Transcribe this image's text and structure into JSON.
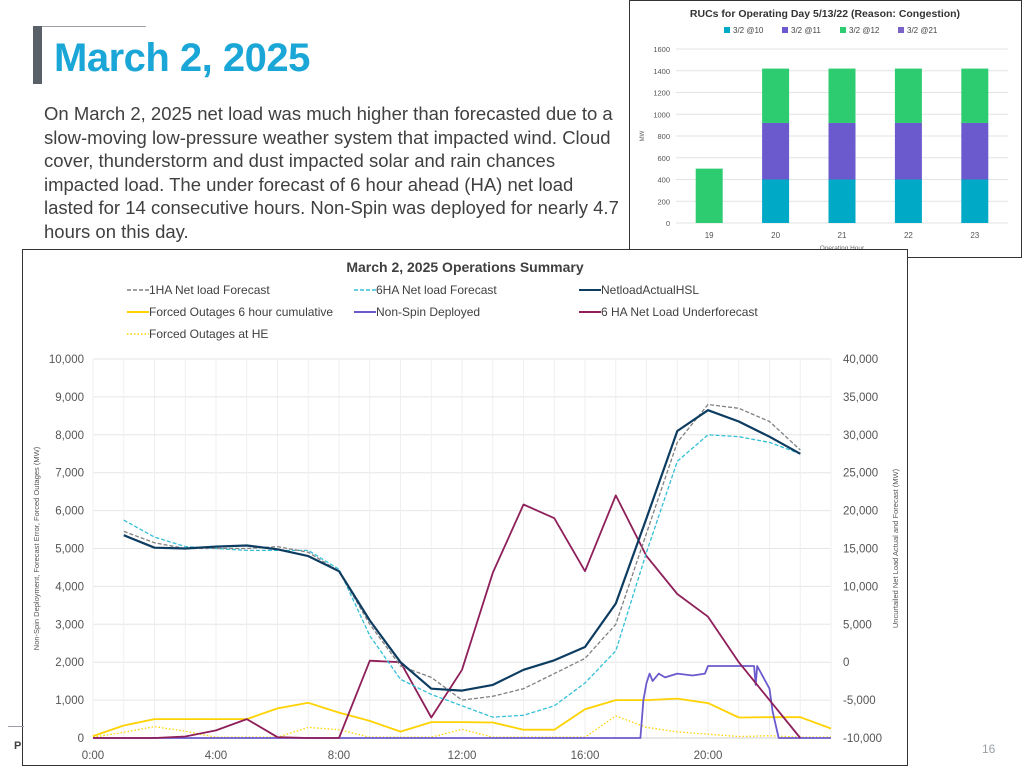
{
  "slide": {
    "title": "March 2, 2025",
    "body": "On March 2, 2025 net load was much higher than forecasted due to a slow-moving low-pressure weather system that impacted wind. Cloud cover, thunderstorm and dust impacted solar and rain chances impacted load. The under forecast of 6 hour ahead (HA) net load lasted for 14 consecutive hours. Non-Spin was deployed for nearly 4.7 hours on this day.",
    "page_number": "16",
    "footer_mark": "P"
  },
  "chart_data": [
    {
      "type": "bar",
      "stacked": true,
      "title": "RUCs for Operating Day 5/13/22 (Reason: Congestion)",
      "xlabel": "Operating Hour",
      "ylabel": "MW",
      "categories": [
        "19",
        "20",
        "21",
        "22",
        "23"
      ],
      "ylim": [
        0,
        1600
      ],
      "yticks": [
        0,
        200,
        400,
        600,
        800,
        1000,
        1200,
        1400,
        1600
      ],
      "grid": true,
      "legend_position": "top",
      "series": [
        {
          "name": "3/2 @10",
          "color": "#00a9c5",
          "values": [
            0,
            400,
            400,
            400,
            400
          ]
        },
        {
          "name": "3/2 @11",
          "color": "#6a5acd",
          "values": [
            0,
            520,
            520,
            520,
            520
          ]
        },
        {
          "name": "3/2 @12",
          "color": "#2ecc71",
          "values": [
            500,
            500,
            500,
            500,
            500
          ]
        },
        {
          "name": "3/2 @21",
          "color": "#7b62c9",
          "values": [
            0,
            0,
            0,
            0,
            0
          ]
        }
      ]
    },
    {
      "type": "line",
      "title": "March 2, 2025 Operations Summary",
      "ylabel": "Non-Spin Deployment, Forecast Error, Forced Outages (MW)",
      "y2label": "Uncurtailed Net Load Actual and Forecast (MW)",
      "ylim": [
        0,
        10000
      ],
      "y2lim": [
        -10000,
        40000
      ],
      "yticks": [
        "0",
        "1,000",
        "2,000",
        "3,000",
        "4,000",
        "5,000",
        "6,000",
        "7,000",
        "8,000",
        "9,000",
        "10,000"
      ],
      "y2ticks": [
        "-10,000",
        "-5,000",
        "0",
        "5,000",
        "10,000",
        "15,000",
        "20,000",
        "25,000",
        "30,000",
        "35,000",
        "40,000"
      ],
      "xlim": [
        0,
        24
      ],
      "xticks": [
        0,
        4,
        8,
        12,
        16,
        20
      ],
      "xtick_labels": [
        "0:00",
        "4:00",
        "8:00",
        "12:00",
        "16:00",
        "20:00"
      ],
      "grid": true,
      "legend_position": "top",
      "series": [
        {
          "name": "1HA Net load Forecast",
          "axis": "left",
          "color": "#808080",
          "style": "dashed",
          "x": [
            1,
            2,
            3,
            4,
            5,
            6,
            7,
            8,
            9,
            10,
            11,
            12,
            13,
            14,
            15,
            16,
            17,
            18,
            19,
            20,
            21,
            22,
            23
          ],
          "y": [
            5450,
            5150,
            5000,
            5000,
            5000,
            5050,
            4900,
            4400,
            3000,
            1900,
            1600,
            1000,
            1100,
            1300,
            1700,
            2100,
            3000,
            5400,
            7800,
            8800,
            8700,
            8350,
            7600
          ]
        },
        {
          "name": "6HA Net load Forecast",
          "axis": "left",
          "color": "#33bfd6",
          "style": "dashed",
          "x": [
            1,
            2,
            3,
            4,
            5,
            6,
            7,
            8,
            9,
            10,
            11,
            12,
            13,
            14,
            15,
            16,
            17,
            18,
            19,
            20,
            21,
            22,
            23
          ],
          "y": [
            5750,
            5300,
            5050,
            5000,
            4950,
            4950,
            4950,
            4450,
            2700,
            1550,
            1150,
            850,
            550,
            600,
            850,
            1450,
            2300,
            4900,
            7300,
            8000,
            7950,
            7800,
            7500
          ]
        },
        {
          "name": "NetloadActualHSL",
          "axis": "left",
          "color": "#0d3c61",
          "style": "solid",
          "x": [
            1,
            2,
            3,
            4,
            5,
            6,
            7,
            8,
            9,
            10,
            11,
            12,
            13,
            14,
            15,
            16,
            17,
            18,
            19,
            20,
            21,
            22,
            23
          ],
          "y": [
            5350,
            5020,
            5000,
            5050,
            5080,
            4980,
            4800,
            4400,
            3100,
            2000,
            1300,
            1250,
            1400,
            1800,
            2050,
            2400,
            3550,
            5800,
            8100,
            8650,
            8350,
            7950,
            7500
          ]
        },
        {
          "name": "Forced Outages 6 hour cumulative",
          "axis": "left",
          "color": "#ffd200",
          "style": "solid",
          "x": [
            0,
            1,
            2,
            3,
            4,
            5,
            6,
            7,
            8,
            9,
            10,
            11,
            12,
            13,
            14,
            15,
            16,
            17,
            18,
            19,
            20,
            21,
            22,
            23,
            24
          ],
          "y": [
            50,
            330,
            500,
            500,
            500,
            500,
            780,
            930,
            670,
            450,
            170,
            420,
            420,
            410,
            220,
            220,
            760,
            1000,
            1000,
            1040,
            920,
            540,
            550,
            550,
            250
          ]
        },
        {
          "name": "Non-Spin Deployed",
          "axis": "left",
          "color": "#6a5acd",
          "style": "solid",
          "x": [
            0,
            17.8,
            17.85,
            17.9,
            18.0,
            18.1,
            18.2,
            18.4,
            18.6,
            19.0,
            19.5,
            19.9,
            20.0,
            21.0,
            21.5,
            21.55,
            21.6,
            22.0,
            22.1,
            22.3,
            24
          ],
          "y": [
            0,
            0,
            500,
            1000,
            1450,
            1700,
            1500,
            1700,
            1600,
            1700,
            1650,
            1700,
            1900,
            1900,
            1900,
            1400,
            1900,
            1300,
            700,
            0,
            0
          ]
        },
        {
          "name": "6 HA Net Load Underforecast",
          "axis": "right",
          "color": "#8e1f5a",
          "style": "solid",
          "x": [
            0,
            1,
            2,
            3,
            4,
            5,
            6,
            7,
            8,
            9,
            10,
            11,
            12,
            13,
            14,
            15,
            16,
            17,
            18,
            19,
            20,
            21,
            22,
            23
          ],
          "y": [
            -10000,
            -10000,
            -10000,
            -9800,
            -9000,
            -7500,
            -9900,
            -10000,
            -10000,
            200,
            0,
            -7300,
            -1000,
            11800,
            20800,
            19000,
            12000,
            22000,
            14000,
            9000,
            6000,
            0,
            -5000,
            -10000
          ]
        },
        {
          "name": "Forced Outages at HE",
          "axis": "left",
          "color": "#ffd200",
          "style": "dotted",
          "x": [
            0,
            1,
            2,
            3,
            4,
            5,
            6,
            7,
            8,
            9,
            10,
            11,
            12,
            13,
            14,
            15,
            16,
            17,
            18,
            19,
            20,
            21,
            22,
            23,
            24
          ],
          "y": [
            20,
            150,
            300,
            180,
            20,
            20,
            20,
            280,
            220,
            20,
            20,
            20,
            230,
            20,
            20,
            20,
            20,
            580,
            280,
            160,
            100,
            40,
            60,
            20,
            20
          ]
        }
      ]
    }
  ]
}
